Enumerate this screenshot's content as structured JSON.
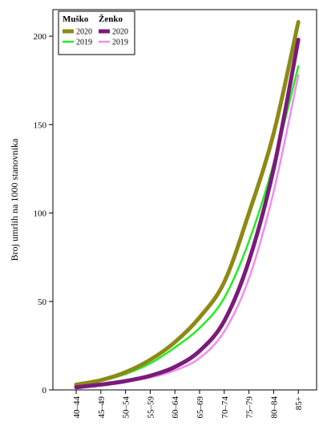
{
  "chart_data": {
    "type": "line",
    "title": "",
    "xlabel": "",
    "ylabel": "Broj umrlih na 1000 stanovnika",
    "categories": [
      "40–44",
      "45–49",
      "50–54",
      "55–59",
      "60–64",
      "65–69",
      "70–74",
      "75–79",
      "80–84",
      "85+"
    ],
    "x_tick_labels": [
      "40–44",
      "45–49",
      "50–54",
      "55–59",
      "60–64",
      "65–69",
      "70–74",
      "75–79",
      "80–84",
      "85+"
    ],
    "ylim": [
      0,
      215
    ],
    "y_ticks": [
      0,
      50,
      100,
      150,
      200
    ],
    "grid": false,
    "legend": {
      "placement": "top-left",
      "group_headers": [
        "Muško",
        "Ženko"
      ],
      "entries": [
        "2020",
        "2019",
        "2020",
        "2019"
      ]
    },
    "series": [
      {
        "group": "Muško",
        "year": "2020",
        "color": "#8c8a14",
        "width": 5,
        "values": [
          3,
          5.5,
          10,
          17,
          27,
          41,
          61,
          100,
          145,
          208
        ]
      },
      {
        "group": "Muško",
        "year": "2019",
        "color": "#22ee22",
        "width": 2.5,
        "values": [
          2.5,
          5,
          9,
          15,
          24,
          35,
          52,
          84,
          128,
          183
        ]
      },
      {
        "group": "Ženko",
        "year": "2020",
        "color": "#7a1a7a",
        "width": 5,
        "values": [
          1.5,
          3,
          5,
          8,
          13,
          22,
          39,
          73,
          125,
          198
        ]
      },
      {
        "group": "Ženko",
        "year": "2019",
        "color": "#f08cf0",
        "width": 2.5,
        "values": [
          1.2,
          2.5,
          4.5,
          7,
          11,
          18,
          33,
          63,
          112,
          178
        ]
      }
    ]
  }
}
